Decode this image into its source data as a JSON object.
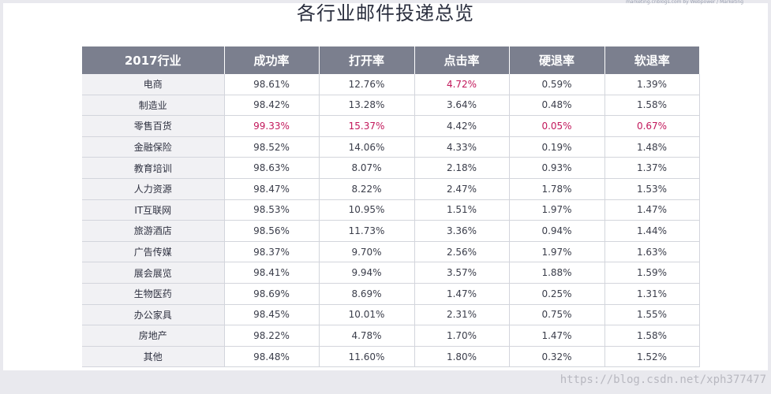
{
  "page": {
    "title": "各行业邮件投递总览",
    "corner_note": "marketing.cnblogs.com by Webpower / Marketing",
    "watermark": "https://blog.csdn.net/xph377477"
  },
  "colors": {
    "header_bg": "#7b7f8e",
    "first_col_bg": "#f1f1f4",
    "highlight_text": "#c2185b",
    "body_text": "#3a3d4a"
  },
  "table": {
    "headers": [
      "2017行业",
      "成功率",
      "打开率",
      "点击率",
      "硬退率",
      "软退率"
    ],
    "rows": [
      {
        "cells": [
          "电商",
          "98.61%",
          "12.76%",
          "4.72%",
          "0.59%",
          "1.39%"
        ],
        "highlight": [
          3
        ]
      },
      {
        "cells": [
          "制造业",
          "98.42%",
          "13.28%",
          "3.64%",
          "0.48%",
          "1.58%"
        ],
        "highlight": []
      },
      {
        "cells": [
          "零售百货",
          "99.33%",
          "15.37%",
          "4.42%",
          "0.05%",
          "0.67%"
        ],
        "highlight": [
          1,
          2,
          4,
          5
        ]
      },
      {
        "cells": [
          "金融保险",
          "98.52%",
          "14.06%",
          "4.33%",
          "0.19%",
          "1.48%"
        ],
        "highlight": []
      },
      {
        "cells": [
          "教育培训",
          "98.63%",
          "8.07%",
          "2.18%",
          "0.93%",
          "1.37%"
        ],
        "highlight": []
      },
      {
        "cells": [
          "人力资源",
          "98.47%",
          "8.22%",
          "2.47%",
          "1.78%",
          "1.53%"
        ],
        "highlight": []
      },
      {
        "cells": [
          "IT互联网",
          "98.53%",
          "10.95%",
          "1.51%",
          "1.97%",
          "1.47%"
        ],
        "highlight": []
      },
      {
        "cells": [
          "旅游酒店",
          "98.56%",
          "11.73%",
          "3.36%",
          "0.94%",
          "1.44%"
        ],
        "highlight": []
      },
      {
        "cells": [
          "广告传媒",
          "98.37%",
          "9.70%",
          "2.56%",
          "1.97%",
          "1.63%"
        ],
        "highlight": []
      },
      {
        "cells": [
          "展会展览",
          "98.41%",
          "9.94%",
          "3.57%",
          "1.88%",
          "1.59%"
        ],
        "highlight": []
      },
      {
        "cells": [
          "生物医药",
          "98.69%",
          "8.69%",
          "1.47%",
          "0.25%",
          "1.31%"
        ],
        "highlight": []
      },
      {
        "cells": [
          "办公家具",
          "98.45%",
          "10.01%",
          "2.31%",
          "0.75%",
          "1.55%"
        ],
        "highlight": []
      },
      {
        "cells": [
          "房地产",
          "98.22%",
          "4.78%",
          "1.70%",
          "1.47%",
          "1.58%"
        ],
        "highlight": []
      },
      {
        "cells": [
          "其他",
          "98.48%",
          "11.60%",
          "1.80%",
          "0.32%",
          "1.52%"
        ],
        "highlight": []
      }
    ]
  }
}
